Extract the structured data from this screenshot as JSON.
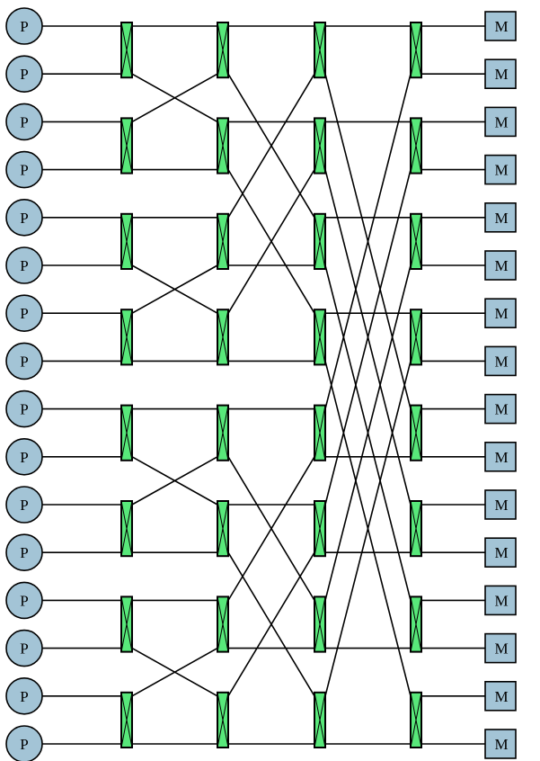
{
  "processor_label": "P",
  "memory_label": "M",
  "processor_count": 16,
  "memory_count": 16,
  "stages": 4,
  "colors": {
    "node_fill": "#a3c4d6",
    "switch_fill": "#58e87a",
    "stroke": "#000000",
    "background": "#ffffff"
  }
}
